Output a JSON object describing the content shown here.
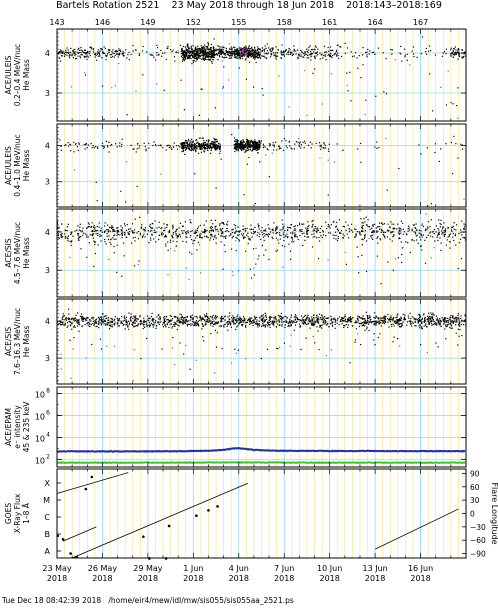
{
  "page": {
    "title_parts": [
      "Bartels Rotation 2521",
      "23 May 2018 through 18 Jun 2018",
      "2018:143–2018:169"
    ],
    "footer_parts": [
      "Tue Dec 18 08:42:39 2018",
      "/home/eir4/mew/idl/mw/sis055/sis055aa_2521.ps"
    ]
  },
  "colors": {
    "grid_yellow": "#f5e27a",
    "grid_cyan": "#8fd8e8",
    "protons_blue": "#1f2fa8",
    "electrons_green": "#33cc33",
    "scatter_dots": "#000000",
    "rare_dots": "#3a6bd6",
    "highlight_dots": "#cc33cc"
  },
  "chart_data": {
    "type": "scatter",
    "x_unit": "day of year 2018",
    "xlim": [
      143,
      170
    ],
    "top_ticks": [
      "143",
      "146",
      "149",
      "152",
      "155",
      "158",
      "161",
      "164",
      "167"
    ],
    "top_tick_values": [
      143,
      146,
      149,
      152,
      155,
      158,
      161,
      164,
      167
    ],
    "bottom_ticks": [
      {
        "day": 143,
        "line1": "23 May",
        "line2": "2018"
      },
      {
        "day": 146,
        "line1": "26 May",
        "line2": "2018"
      },
      {
        "day": 149,
        "line1": "29 May",
        "line2": "2018"
      },
      {
        "day": 152,
        "line1": "1 Jun",
        "line2": "2018"
      },
      {
        "day": 155,
        "line1": "4 Jun",
        "line2": "2018"
      },
      {
        "day": 158,
        "line1": "7 Jun",
        "line2": "2018"
      },
      {
        "day": 161,
        "line1": "10 Jun",
        "line2": "2018"
      },
      {
        "day": 164,
        "line1": "13 Jun",
        "line2": "2018"
      },
      {
        "day": 167,
        "line1": "16 Jun",
        "line2": "2018"
      }
    ],
    "panels": [
      {
        "kind": "mass",
        "ylabel_lines": [
          "ACE/ULEIS",
          "0.2–0.4 MeV/nuc",
          "He Mass"
        ],
        "ylim": [
          2.3,
          4.6
        ],
        "ytick_values": [
          3,
          4
        ],
        "ytick_labels": [
          "3",
          "4"
        ],
        "clusters": [
          {
            "day_start": 143.0,
            "day_end": 147.5,
            "mass": 4.0,
            "spread": 0.07,
            "count": 170,
            "color": "scatter_dots"
          },
          {
            "day_start": 147.5,
            "day_end": 151.2,
            "mass": 4.0,
            "spread": 0.09,
            "count": 45,
            "color": "scatter_dots"
          },
          {
            "day_start": 151.2,
            "day_end": 153.4,
            "mass": 4.0,
            "spread": 0.09,
            "count": 420,
            "color": "scatter_dots"
          },
          {
            "day_start": 153.4,
            "day_end": 154.7,
            "mass": 4.0,
            "spread": 0.08,
            "count": 110,
            "color": "scatter_dots"
          },
          {
            "day_start": 154.7,
            "day_end": 156.4,
            "mass": 4.0,
            "spread": 0.07,
            "count": 270,
            "color": "scatter_dots"
          },
          {
            "day_start": 155.0,
            "day_end": 155.6,
            "mass": 4.05,
            "spread": 0.05,
            "count": 18,
            "color": "highlight_dots"
          },
          {
            "day_start": 156.4,
            "day_end": 161.5,
            "mass": 4.0,
            "spread": 0.08,
            "count": 180,
            "color": "scatter_dots"
          },
          {
            "day_start": 161.5,
            "day_end": 169.0,
            "mass": 4.0,
            "spread": 0.1,
            "count": 60,
            "color": "scatter_dots"
          },
          {
            "day_start": 169.0,
            "day_end": 170.0,
            "mass": 4.0,
            "spread": 0.07,
            "count": 55,
            "color": "scatter_dots"
          },
          {
            "day_start": 143.0,
            "day_end": 170.0,
            "mass": 3.4,
            "spread": 0.6,
            "count": 55,
            "color": "scatter_dots"
          },
          {
            "day_start": 143.0,
            "day_end": 170.0,
            "mass": 3.4,
            "spread": 0.6,
            "count": 25,
            "color": "rare_dots"
          }
        ]
      },
      {
        "kind": "mass",
        "ylabel_lines": [
          "ACE/ULEIS",
          "0.4–1.0 MeV/nuc",
          "He Mass"
        ],
        "ylim": [
          2.3,
          4.6
        ],
        "ytick_values": [
          3,
          4
        ],
        "ytick_labels": [
          "3",
          "4"
        ],
        "clusters": [
          {
            "day_start": 143.0,
            "day_end": 151.2,
            "mass": 4.0,
            "spread": 0.07,
            "count": 90,
            "color": "scatter_dots"
          },
          {
            "day_start": 151.2,
            "day_end": 153.8,
            "mass": 4.0,
            "spread": 0.08,
            "count": 320,
            "color": "scatter_dots"
          },
          {
            "day_start": 154.7,
            "day_end": 156.4,
            "mass": 4.0,
            "spread": 0.07,
            "count": 330,
            "color": "scatter_dots"
          },
          {
            "day_start": 156.4,
            "day_end": 161.0,
            "mass": 4.0,
            "spread": 0.07,
            "count": 70,
            "color": "scatter_dots"
          },
          {
            "day_start": 161.0,
            "day_end": 170.0,
            "mass": 4.0,
            "spread": 0.09,
            "count": 18,
            "color": "scatter_dots"
          },
          {
            "day_start": 143.0,
            "day_end": 170.0,
            "mass": 3.4,
            "spread": 0.6,
            "count": 30,
            "color": "scatter_dots"
          },
          {
            "day_start": 143.0,
            "day_end": 170.0,
            "mass": 3.4,
            "spread": 0.6,
            "count": 14,
            "color": "rare_dots"
          }
        ]
      },
      {
        "kind": "mass",
        "ylabel_lines": [
          "ACE/SIS",
          "4.5–7.6 MeV/nuc",
          "He Mass"
        ],
        "ylim": [
          2.3,
          4.6
        ],
        "ytick_values": [
          3,
          4
        ],
        "ytick_labels": [
          "3",
          "4"
        ],
        "clusters": [
          {
            "day_start": 143.0,
            "day_end": 170.0,
            "mass": 4.0,
            "spread": 0.14,
            "count": 980,
            "color": "scatter_dots"
          },
          {
            "day_start": 143.0,
            "day_end": 170.0,
            "mass": 3.5,
            "spread": 0.35,
            "count": 90,
            "color": "scatter_dots"
          },
          {
            "day_start": 143.0,
            "day_end": 170.0,
            "mass": 3.5,
            "spread": 0.5,
            "count": 35,
            "color": "rare_dots"
          }
        ]
      },
      {
        "kind": "mass",
        "ylabel_lines": [
          "ACE/SIS",
          "7.6–16.3 MeV/nuc",
          "He Mass"
        ],
        "ylim": [
          2.3,
          4.6
        ],
        "ytick_values": [
          3,
          4
        ],
        "ytick_labels": [
          "3",
          "4"
        ],
        "clusters": [
          {
            "day_start": 143.0,
            "day_end": 170.0,
            "mass": 4.0,
            "spread": 0.09,
            "count": 1500,
            "color": "scatter_dots"
          },
          {
            "day_start": 143.0,
            "day_end": 170.0,
            "mass": 3.55,
            "spread": 0.35,
            "count": 70,
            "color": "scatter_dots"
          },
          {
            "day_start": 143.0,
            "day_end": 170.0,
            "mass": 3.5,
            "spread": 0.5,
            "count": 30,
            "color": "rare_dots"
          }
        ]
      },
      {
        "kind": "intensity",
        "ylabel_lines": [
          "ACE/EPAM",
          "e⁻ intensity",
          "45 & 235 keV"
        ],
        "log_scale": true,
        "ylim_exp": [
          1.3,
          8.6
        ],
        "ytick_exps": [
          2,
          4,
          6,
          8
        ],
        "ytick_labels": [
          "10",
          "10",
          "10",
          "10"
        ],
        "ytick_sups": [
          "2",
          "4",
          "6",
          "8"
        ],
        "series": [
          {
            "color": "protons_blue",
            "days": [
              143,
              145,
              147,
              149,
              151,
              153,
              154,
              154.6,
              155,
              155.4,
              156,
              157,
              158,
              160,
              162,
              164,
              166,
              168,
              170
            ],
            "log10_values": [
              2.72,
              2.73,
              2.72,
              2.73,
              2.74,
              2.78,
              2.86,
              2.98,
              3.02,
              2.96,
              2.86,
              2.8,
              2.78,
              2.77,
              2.76,
              2.76,
              2.75,
              2.75,
              2.74
            ]
          },
          {
            "color": "electrons_green",
            "days": [
              143,
              150,
              155,
              160,
              165,
              170
            ],
            "log10_values": [
              1.7,
              1.7,
              1.72,
              1.7,
              1.7,
              1.7
            ]
          }
        ]
      },
      {
        "kind": "goes",
        "ylabel_lines": [
          "GOES",
          "X-Ray Flux",
          "1–8 Å"
        ],
        "left_ticks": [
          "A",
          "B",
          "C",
          "M",
          "X"
        ],
        "right_label": "Flare Longitude",
        "right_ticks": [
          "90",
          "60",
          "30",
          "0",
          "−30",
          "−60",
          "−90"
        ],
        "right_tick_values": [
          90,
          60,
          30,
          0,
          -30,
          -60,
          -90
        ],
        "ylim": [
          -100,
          100
        ],
        "tracks": [
          {
            "days": [
              143.4,
              145.6
            ],
            "lon": [
              -62,
              -30
            ]
          },
          {
            "days": [
              143.0,
              147.7
            ],
            "lon": [
              45,
              92
            ]
          },
          {
            "days": [
              144.0,
              155.6
            ],
            "lon": [
              -100,
              68
            ]
          },
          {
            "days": [
              164.0,
              169.5
            ],
            "lon": [
              -80,
              10
            ]
          }
        ],
        "events": [
          {
            "day": 143.05,
            "lon": -50
          },
          {
            "day": 143.4,
            "lon": -58
          },
          {
            "day": 143.9,
            "lon": -90
          },
          {
            "day": 144.3,
            "lon": -98
          },
          {
            "day": 144.9,
            "lon": 55
          },
          {
            "day": 145.3,
            "lon": 82
          },
          {
            "day": 148.7,
            "lon": -52
          },
          {
            "day": 150.4,
            "lon": -28
          },
          {
            "day": 152.2,
            "lon": -5
          },
          {
            "day": 153.0,
            "lon": 7
          },
          {
            "day": 153.6,
            "lon": 16
          },
          {
            "day": 149.1,
            "lon": -101
          },
          {
            "day": 150.2,
            "lon": -101
          }
        ]
      }
    ]
  }
}
